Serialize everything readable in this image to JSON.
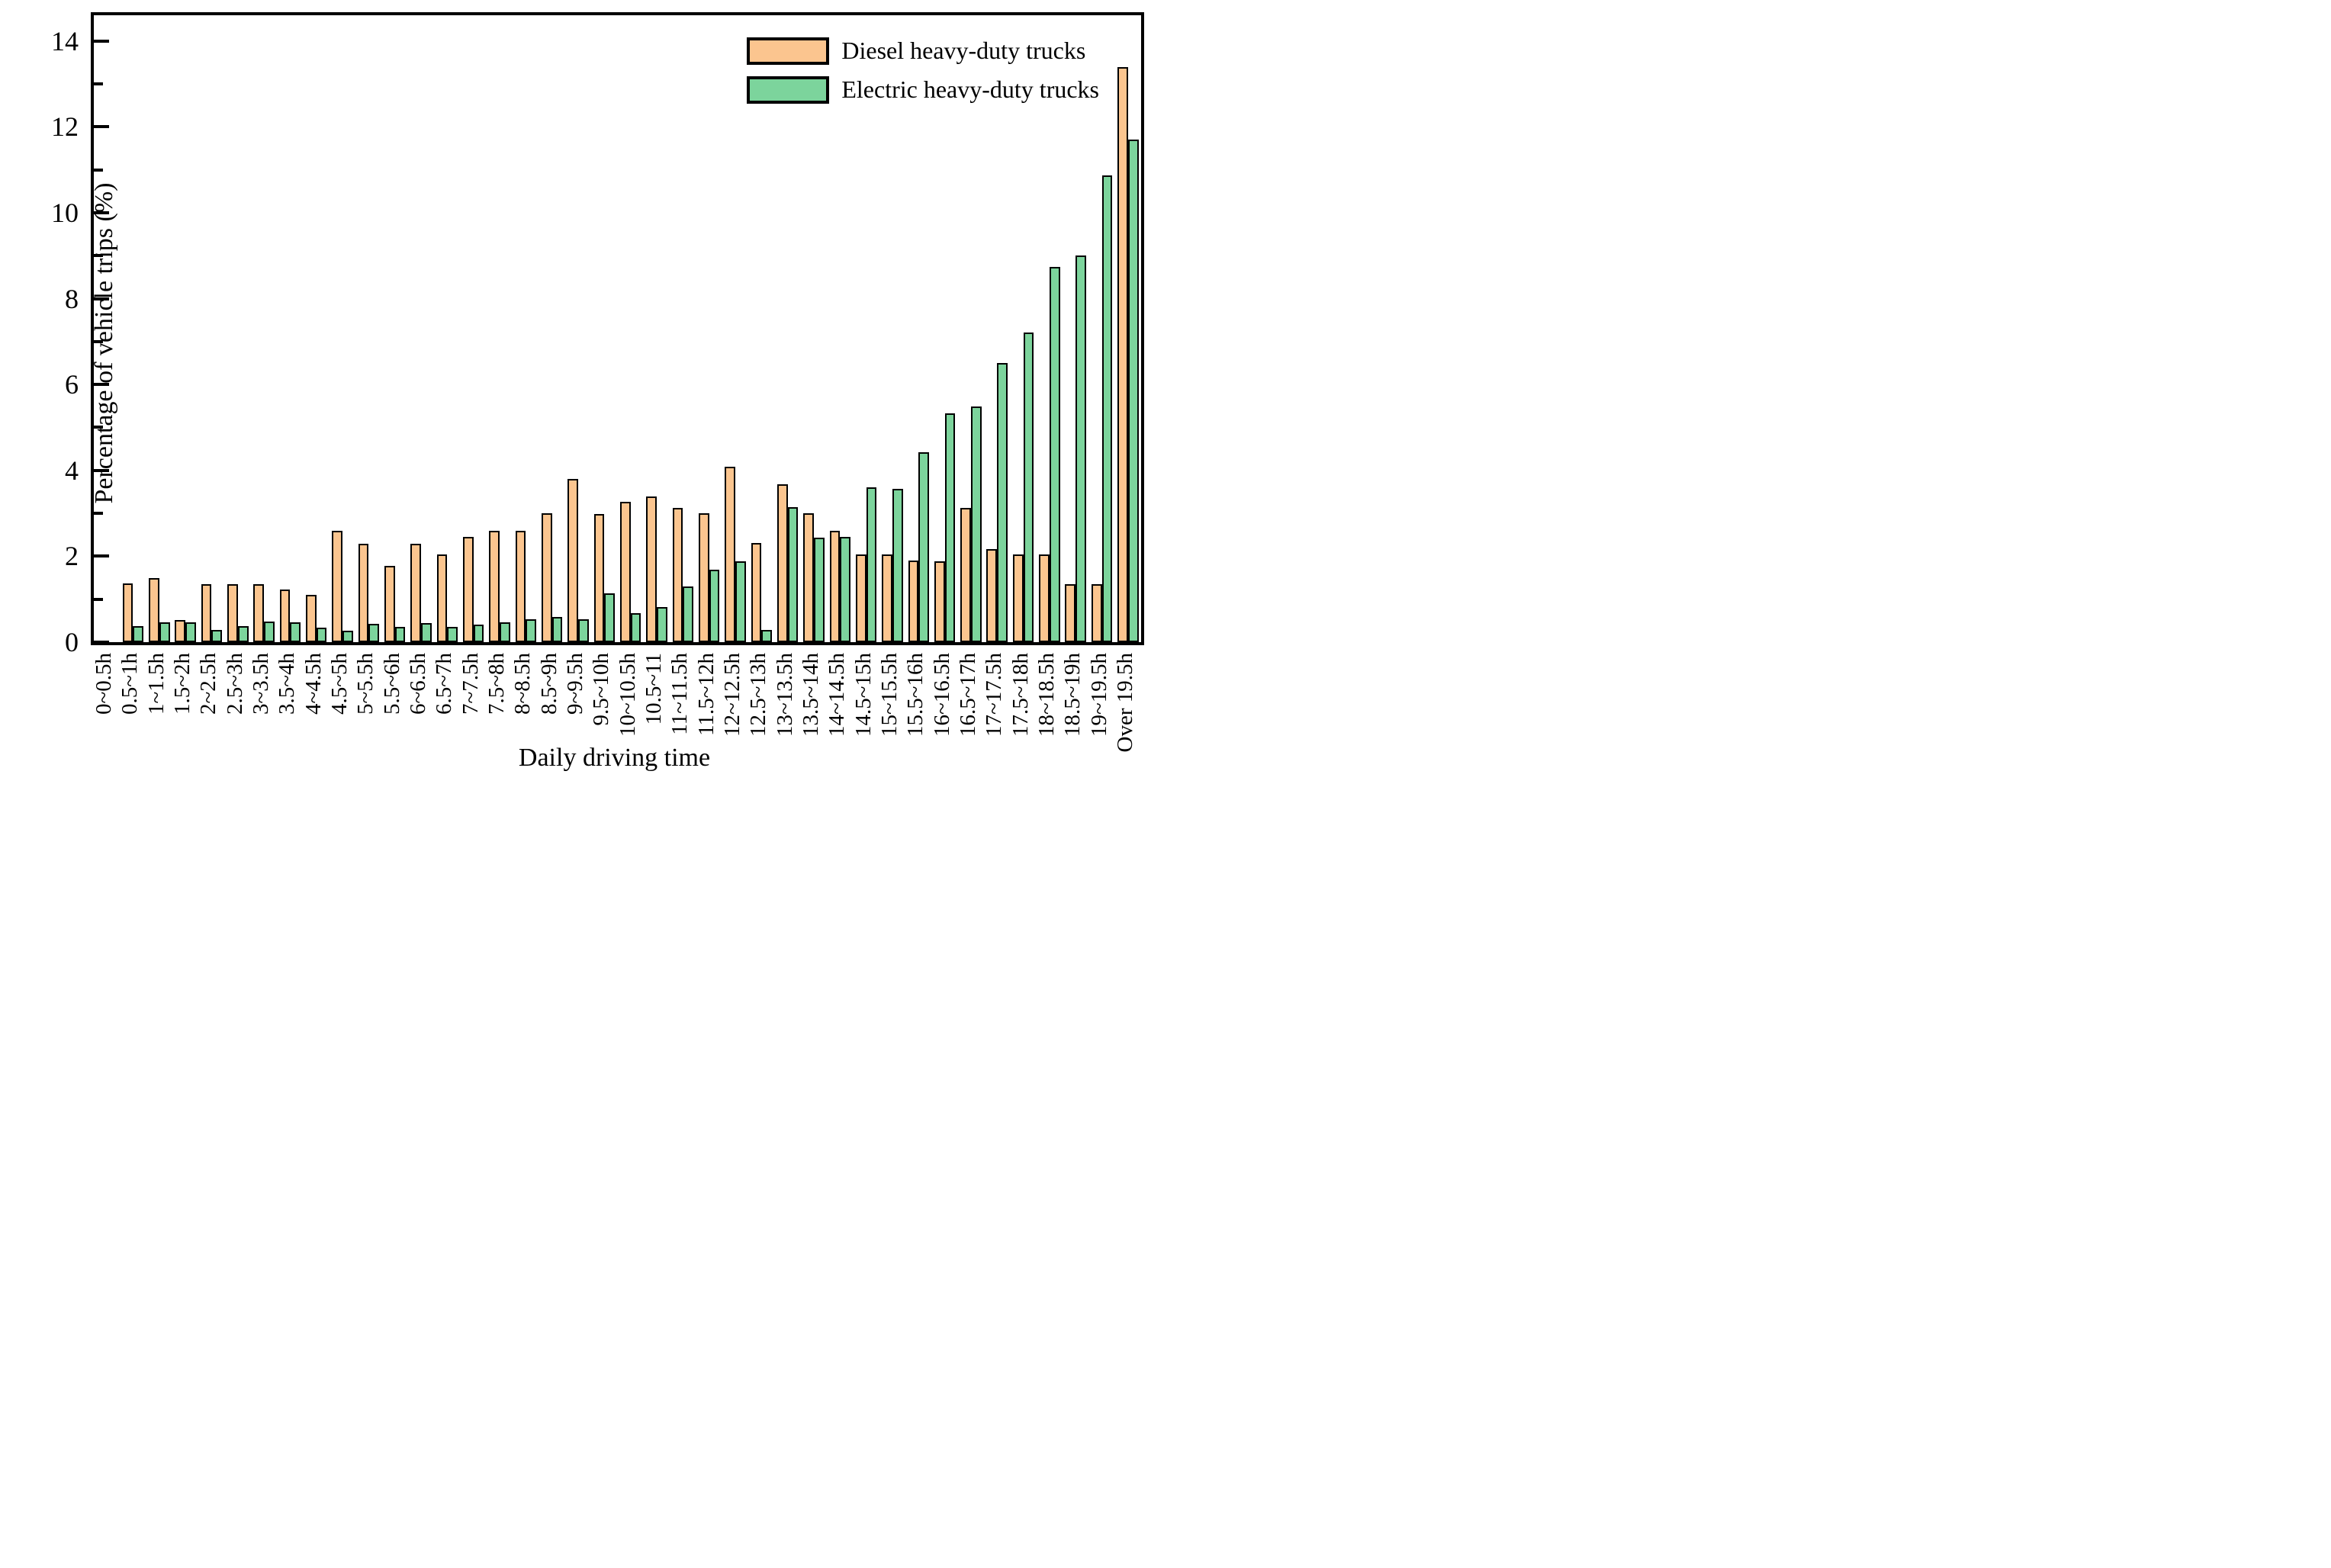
{
  "chart_data": {
    "type": "bar",
    "title": "",
    "xlabel": "Daily driving time",
    "ylabel": "Percentage of vehicle trips (%)",
    "ylim": [
      0,
      14.6
    ],
    "yticks_major": [
      0,
      2,
      4,
      6,
      8,
      10,
      12,
      14
    ],
    "yticks_minor": [
      1,
      3,
      5,
      7,
      9,
      11,
      13
    ],
    "grid": false,
    "legend_position": "top-right",
    "categories": [
      "0~0.5h",
      "0.5~1h",
      "1~1.5h",
      "1.5~2h",
      "2~2.5h",
      "2.5~3h",
      "3~3.5h",
      "3.5~4h",
      "4~4.5h",
      "4.5~5h",
      "5~5.5h",
      "5.5~6h",
      "6~6.5h",
      "6.5~7h",
      "7~7.5h",
      "7.5~8h",
      "8~8.5h",
      "8.5~9h",
      "9~9.5h",
      "9.5~10h",
      "10~10.5h",
      "10.5~11",
      "11~11.5h",
      "11.5~12h",
      "12~12.5h",
      "12.5~13h",
      "13~13.5h",
      "13.5~14h",
      "14~14.5h",
      "14.5~15h",
      "15~15.5h",
      "15.5~16h",
      "16~16.5h",
      "16.5~17h",
      "17~17.5h",
      "17.5~18h",
      "18~18.5h",
      "18.5~19h",
      "19~19.5h",
      "Over 19.5h"
    ],
    "series": [
      {
        "name": "Diesel heavy-duty trucks",
        "color": "#FBC58F",
        "values": [
          0,
          1.36,
          1.5,
          0.52,
          1.35,
          1.35,
          1.35,
          1.22,
          1.1,
          2.59,
          2.3,
          1.77,
          2.3,
          2.04,
          2.45,
          2.59,
          2.59,
          3.0,
          3.8,
          2.98,
          3.27,
          3.39,
          3.13,
          3.0,
          4.08,
          2.31,
          3.67,
          3.0,
          2.59,
          2.05,
          2.05,
          1.9,
          1.88,
          3.13,
          2.16,
          2.05,
          2.05,
          1.35,
          1.35,
          13.4
        ]
      },
      {
        "name": "Electric heavy-duty trucks",
        "color": "#7CD49C",
        "values": [
          0,
          0.37,
          0.47,
          0.46,
          0.29,
          0.37,
          0.48,
          0.47,
          0.33,
          0.27,
          0.43,
          0.36,
          0.45,
          0.36,
          0.41,
          0.46,
          0.54,
          0.58,
          0.53,
          1.14,
          0.67,
          0.82,
          1.3,
          1.69,
          1.88,
          0.28,
          3.15,
          2.43,
          2.45,
          3.6,
          3.57,
          4.42,
          5.33,
          5.49,
          6.5,
          7.21,
          8.74,
          9.0,
          10.87,
          11.7
        ]
      }
    ],
    "axis_color": "#000000",
    "bar_edge_color": "#000000"
  }
}
